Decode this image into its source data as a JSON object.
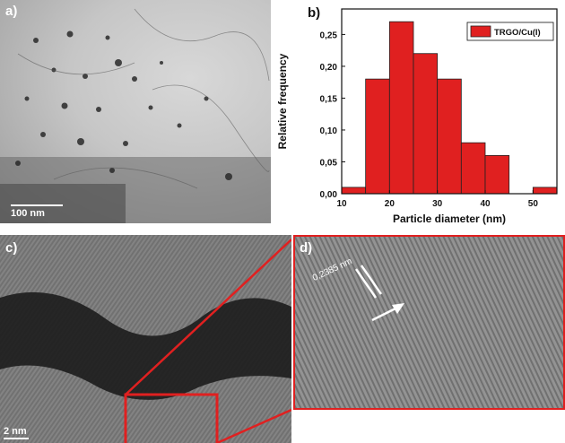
{
  "panels": {
    "a": {
      "label": "a)",
      "scale_bar": "100 nm"
    },
    "b": {
      "label": "b)"
    },
    "c": {
      "label": "c)",
      "scale_bar": "2 nm"
    },
    "d": {
      "label": "d)",
      "lattice_spacing": "0,2385 nm"
    }
  },
  "colors": {
    "bar_fill": "#e02020",
    "zoom_box": "#e02020"
  },
  "chart_data": {
    "type": "bar",
    "xlabel": "Particle diameter (nm)",
    "ylabel": "Relative frequency",
    "legend": "TRGO/Cu(I)",
    "legend_position": "top-right",
    "xlim": [
      10,
      55
    ],
    "ylim": [
      0,
      0.29
    ],
    "xticks": [
      "10",
      "20",
      "30",
      "40",
      "50"
    ],
    "yticks": [
      "0,00",
      "0,05",
      "0,10",
      "0,15",
      "0,20",
      "0,25"
    ],
    "bin_width": 5,
    "bin_centers": [
      12.5,
      17.5,
      22.5,
      27.5,
      32.5,
      37.5,
      42.5,
      52.5
    ],
    "values": [
      0.01,
      0.18,
      0.27,
      0.22,
      0.18,
      0.08,
      0.06,
      0.01
    ]
  }
}
